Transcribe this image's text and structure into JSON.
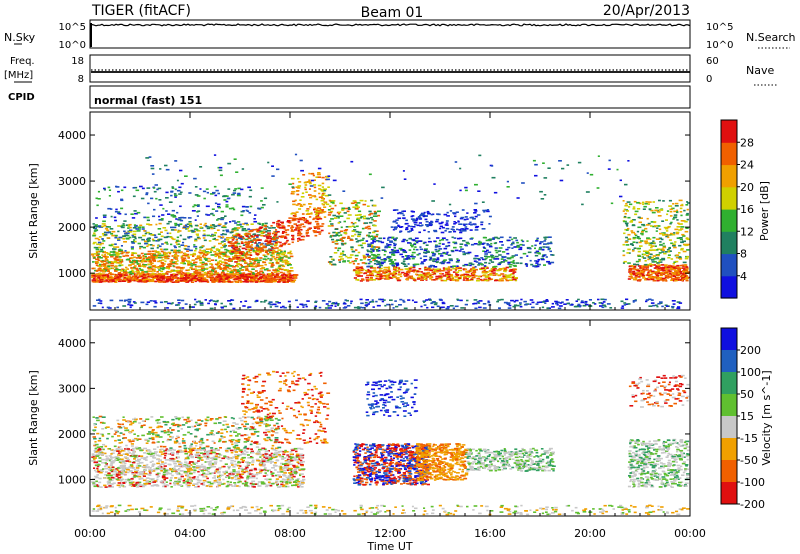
{
  "header": {
    "station": "TIGER (fitACF)",
    "beam": "Beam 01",
    "date": "20/Apr/2013"
  },
  "nsky_panel": {
    "left_label": "N.Sky",
    "right_label": "N.Search",
    "left_ticks": [
      "10^5",
      "10^0"
    ],
    "right_ticks": [
      "10^5",
      "10^0"
    ]
  },
  "freq_panel": {
    "left_label_line1": "Freq.",
    "left_label_line2": "[MHz]",
    "right_label": "Nave",
    "left_ticks": [
      "18",
      "8"
    ],
    "right_ticks": [
      "60",
      "0"
    ]
  },
  "cpid": {
    "label": "CPID",
    "value": "normal (fast) 151"
  },
  "xaxis": {
    "label": "Time UT",
    "ticks": [
      "00:00",
      "04:00",
      "08:00",
      "12:00",
      "16:00",
      "20:00",
      "00:00"
    ]
  },
  "chart_data": [
    {
      "type": "heatmap",
      "title": "",
      "xlabel": "Time UT",
      "ylabel": "Slant Range [km]",
      "xlim": [
        0,
        24
      ],
      "ylim": [
        200,
        4500
      ],
      "yticks": [
        1000,
        2000,
        3000,
        4000
      ],
      "colorbar": {
        "label": "Power [dB]",
        "ticks": [
          "4",
          "8",
          "12",
          "16",
          "20",
          "24",
          "28"
        ],
        "colors": [
          "#1010e0",
          "#2050c0",
          "#208060",
          "#30b030",
          "#d0d000",
          "#f0a000",
          "#f06000",
          "#e01010"
        ]
      },
      "scatter_regions": [
        {
          "t": [
            0,
            8
          ],
          "range": [
            800,
            1050
          ],
          "level": "high",
          "description_color": "#e83010"
        },
        {
          "t": [
            0,
            8
          ],
          "range": [
            1050,
            2000
          ],
          "level": "mid"
        },
        {
          "t": [
            7.5,
            9.5
          ],
          "range": [
            1400,
            3200
          ],
          "level": "high"
        },
        {
          "t": [
            10,
            17
          ],
          "range": [
            900,
            1900
          ],
          "level": "mixed"
        },
        {
          "t": [
            11,
            17
          ],
          "range": [
            1500,
            2400
          ],
          "level": "low"
        },
        {
          "t": [
            21.5,
            24
          ],
          "range": [
            800,
            2600
          ],
          "level": "mixed"
        }
      ]
    },
    {
      "type": "heatmap",
      "title": "",
      "xlabel": "Time UT",
      "ylabel": "Slant Range [km]",
      "xlim": [
        0,
        24
      ],
      "ylim": [
        200,
        4500
      ],
      "yticks": [
        1000,
        2000,
        3000,
        4000
      ],
      "colorbar": {
        "label": "Velocity [m s^-1]",
        "ticks": [
          "200",
          "100",
          "50",
          "15",
          "-15",
          "-50",
          "-100",
          "-200"
        ],
        "colors": [
          "#1010e0",
          "#2060c0",
          "#30a060",
          "#60c030",
          "#c8c8c8",
          "#f0a000",
          "#f06000",
          "#e01010"
        ]
      }
    }
  ]
}
